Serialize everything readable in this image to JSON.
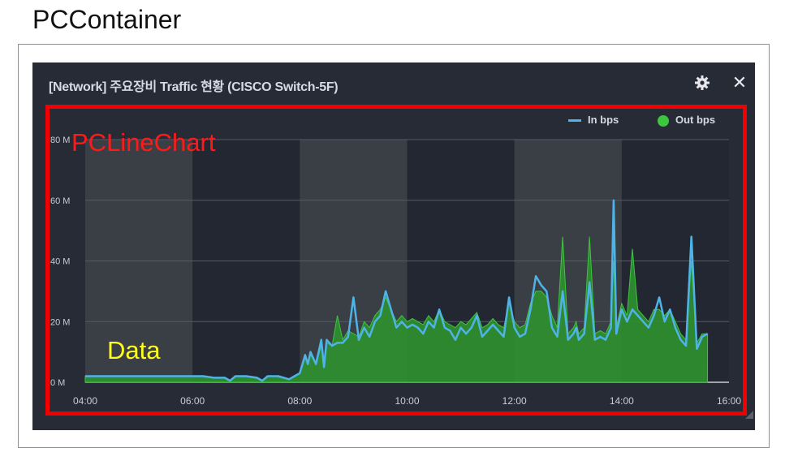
{
  "page": {
    "caption": "PCContainer"
  },
  "widget": {
    "title": "[Network] 주요장비 Traffic 현황 (CISCO Switch-5F)",
    "settings_icon": "gear-icon",
    "close_icon": "close-icon"
  },
  "annotations": {
    "chart_label": "PCLineChart",
    "data_label": "Data"
  },
  "colors": {
    "in_line": "#4fb3e8",
    "out_fill": "#2f8f2f",
    "out_legend": "#3dc63d",
    "frame": "#f00000",
    "widget_bg": "#272b36"
  },
  "chart_data": {
    "type": "area",
    "x_unit": "hours",
    "xlim": [
      4,
      16
    ],
    "ylim": [
      0,
      80
    ],
    "x_ticks": [
      "04:00",
      "06:00",
      "08:00",
      "10:00",
      "12:00",
      "14:00",
      "16:00"
    ],
    "y_ticks": [
      "0 M",
      "20 M",
      "40 M",
      "60 M",
      "80 M"
    ],
    "y_tick_values": [
      0,
      20,
      40,
      60,
      80
    ],
    "shaded_bands": [
      [
        4,
        6
      ],
      [
        8,
        10
      ],
      [
        12,
        14
      ]
    ],
    "legend": [
      "In bps",
      "Out bps"
    ],
    "series": [
      {
        "name": "In bps",
        "style": "line",
        "x": [
          4.0,
          4.2,
          4.4,
          4.6,
          4.8,
          5.0,
          5.2,
          5.4,
          5.6,
          5.8,
          6.0,
          6.2,
          6.4,
          6.6,
          6.7,
          6.8,
          7.0,
          7.2,
          7.3,
          7.4,
          7.5,
          7.6,
          7.8,
          7.9,
          8.0,
          8.1,
          8.15,
          8.2,
          8.3,
          8.4,
          8.45,
          8.5,
          8.6,
          8.7,
          8.8,
          8.9,
          9.0,
          9.1,
          9.2,
          9.3,
          9.4,
          9.5,
          9.6,
          9.7,
          9.8,
          9.9,
          10.0,
          10.1,
          10.2,
          10.3,
          10.4,
          10.5,
          10.6,
          10.7,
          10.8,
          10.9,
          11.0,
          11.1,
          11.2,
          11.3,
          11.4,
          11.5,
          11.6,
          11.7,
          11.8,
          11.9,
          12.0,
          12.1,
          12.2,
          12.3,
          12.4,
          12.5,
          12.6,
          12.7,
          12.8,
          12.9,
          13.0,
          13.1,
          13.15,
          13.2,
          13.3,
          13.4,
          13.5,
          13.6,
          13.7,
          13.8,
          13.85,
          13.9,
          14.0,
          14.1,
          14.2,
          14.3,
          14.4,
          14.5,
          14.6,
          14.7,
          14.8,
          14.9,
          15.0,
          15.1,
          15.2,
          15.3,
          15.4,
          15.5,
          15.6
        ],
        "y": [
          2,
          2,
          2,
          2,
          2,
          2,
          2,
          2,
          2,
          2,
          2,
          2,
          1.5,
          1.5,
          0.5,
          2,
          2,
          1.5,
          0.5,
          2,
          2,
          2,
          1,
          2,
          3,
          9,
          6,
          10,
          6,
          14,
          5,
          14,
          12,
          13,
          13,
          15,
          28,
          14,
          18,
          15,
          20,
          22,
          30,
          24,
          18,
          20,
          18,
          19,
          18,
          16,
          20,
          18,
          24,
          18,
          17,
          14,
          18,
          16,
          18,
          22,
          15,
          17,
          19,
          17,
          15,
          28,
          18,
          15,
          16,
          24,
          35,
          32,
          30,
          18,
          15,
          30,
          14,
          16,
          18,
          14,
          16,
          33,
          14,
          15,
          14,
          18,
          60,
          16,
          24,
          20,
          24,
          22,
          20,
          18,
          22,
          28,
          20,
          24,
          18,
          14,
          12,
          48,
          11,
          15,
          16
        ]
      },
      {
        "name": "Out bps",
        "style": "area",
        "x": [
          4.0,
          4.2,
          4.4,
          4.6,
          4.8,
          5.0,
          5.2,
          5.4,
          5.6,
          5.8,
          6.0,
          6.2,
          6.4,
          6.6,
          6.7,
          6.8,
          7.0,
          7.2,
          7.3,
          7.4,
          7.5,
          7.6,
          7.8,
          7.9,
          8.0,
          8.1,
          8.15,
          8.2,
          8.3,
          8.4,
          8.45,
          8.5,
          8.6,
          8.7,
          8.8,
          8.9,
          9.0,
          9.1,
          9.2,
          9.3,
          9.4,
          9.5,
          9.6,
          9.7,
          9.8,
          9.9,
          10.0,
          10.1,
          10.2,
          10.3,
          10.4,
          10.5,
          10.6,
          10.7,
          10.8,
          10.9,
          11.0,
          11.1,
          11.2,
          11.3,
          11.4,
          11.5,
          11.6,
          11.7,
          11.8,
          11.9,
          12.0,
          12.1,
          12.2,
          12.3,
          12.4,
          12.5,
          12.6,
          12.7,
          12.8,
          12.9,
          13.0,
          13.1,
          13.15,
          13.2,
          13.3,
          13.4,
          13.5,
          13.6,
          13.7,
          13.8,
          13.85,
          13.9,
          14.0,
          14.1,
          14.2,
          14.3,
          14.4,
          14.5,
          14.6,
          14.7,
          14.8,
          14.9,
          15.0,
          15.1,
          15.2,
          15.3,
          15.4,
          15.5,
          15.6
        ],
        "y": [
          2,
          2,
          2,
          2,
          2,
          2,
          2,
          2,
          2,
          2,
          2,
          2,
          1.5,
          1.5,
          0.5,
          2,
          2,
          1.5,
          0.5,
          2,
          2,
          2,
          1,
          2,
          3,
          8,
          6,
          9,
          6,
          12,
          5,
          13,
          12,
          22,
          14,
          17,
          16,
          15,
          20,
          18,
          22,
          24,
          28,
          24,
          20,
          22,
          20,
          21,
          20,
          19,
          22,
          20,
          24,
          20,
          19,
          18,
          20,
          19,
          21,
          23,
          18,
          19,
          21,
          19,
          18,
          26,
          20,
          18,
          19,
          26,
          30,
          30,
          28,
          22,
          18,
          48,
          16,
          18,
          20,
          16,
          18,
          48,
          16,
          17,
          16,
          20,
          40,
          18,
          26,
          22,
          44,
          24,
          22,
          20,
          24,
          24,
          22,
          24,
          20,
          16,
          14,
          40,
          13,
          16,
          16
        ]
      }
    ]
  }
}
